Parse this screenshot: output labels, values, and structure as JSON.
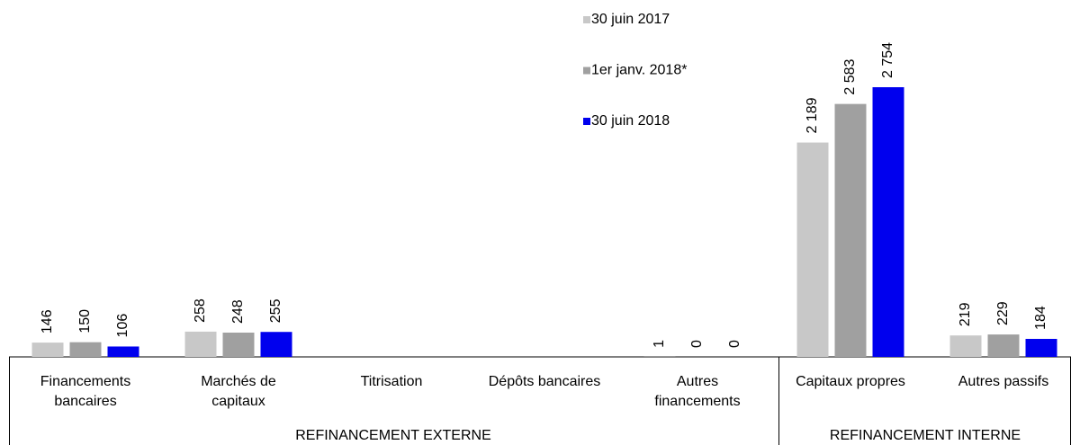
{
  "chart_data": {
    "type": "bar",
    "categories": [
      [
        "Financements",
        "bancaires"
      ],
      [
        "Marchés de",
        "capitaux"
      ],
      [
        "Titrisation"
      ],
      [
        "Dépôts bancaires"
      ],
      [
        "Autres",
        "financements"
      ],
      [
        "Capitaux propres"
      ],
      [
        "Autres passifs"
      ]
    ],
    "groups": [
      "REFINANCEMENT EXTERNE",
      "REFINANCEMENT INTERNE"
    ],
    "series": [
      {
        "name": "30 juin 2017",
        "color": "#c8c8c8",
        "values": [
          146,
          258,
          null,
          null,
          1,
          2189,
          219
        ],
        "value_labels": [
          "146",
          "258",
          null,
          null,
          "1",
          "2 189",
          "219"
        ]
      },
      {
        "name": "1er janv. 2018*",
        "color": "#a0a0a0",
        "values": [
          150,
          248,
          null,
          null,
          0,
          2583,
          229
        ],
        "value_labels": [
          "150",
          "248",
          null,
          null,
          "0",
          "2 583",
          "229"
        ]
      },
      {
        "name": "30 juin 2018",
        "color": "#0000ee",
        "values": [
          106,
          255,
          null,
          null,
          0,
          2754,
          184
        ],
        "value_labels": [
          "106",
          "255",
          null,
          null,
          "0",
          "2 754",
          "184"
        ]
      }
    ]
  }
}
